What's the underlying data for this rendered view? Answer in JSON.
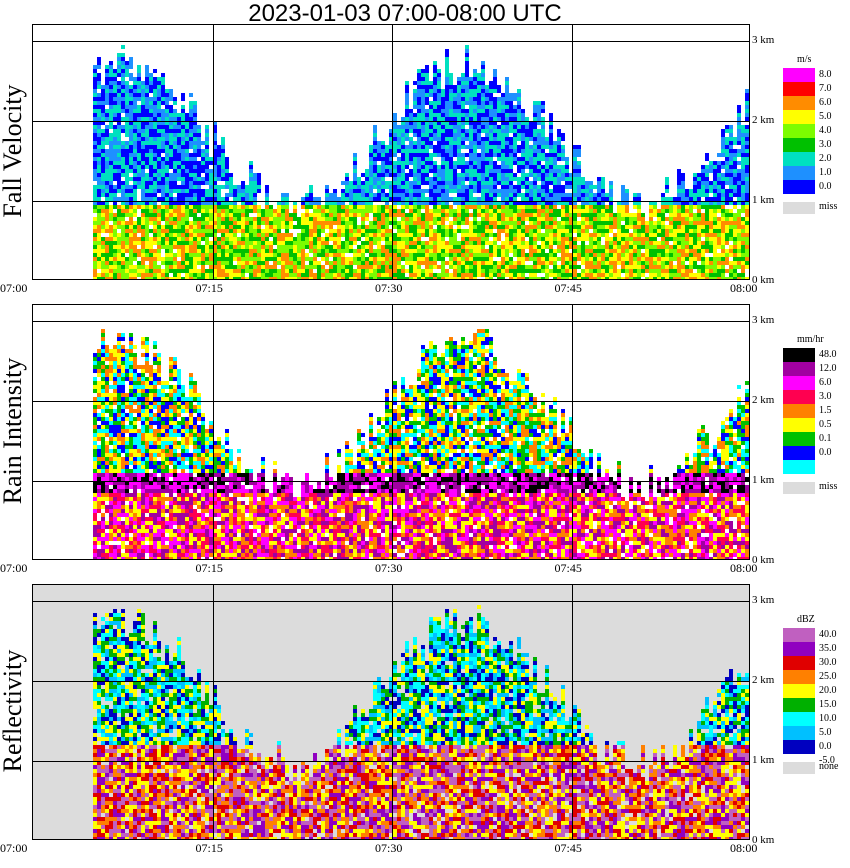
{
  "title": "2023-01-03  07:00-08:00 UTC",
  "time_ticks": [
    "07:00",
    "07:15",
    "07:30",
    "07:45",
    "08:00"
  ],
  "height_ticks": [
    "0 km",
    "1 km",
    "2 km",
    "3 km"
  ],
  "panels": [
    {
      "id": "fall",
      "label": "Fall Velocity",
      "unit": "m/s",
      "levels": [
        "8.0",
        "7.0",
        "6.0",
        "5.0",
        "4.0",
        "3.0",
        "2.0",
        "1.0",
        "0.0"
      ],
      "colors": [
        "#ff00ff",
        "#ff0000",
        "#ff8c00",
        "#ffff00",
        "#7cfc00",
        "#00c000",
        "#00e0c0",
        "#1e90ff",
        "#0000ff"
      ],
      "missing_label": "miss",
      "background": "#ffffff"
    },
    {
      "id": "rain",
      "label": "Rain Intensity",
      "unit": "mm/hr",
      "levels": [
        "48.0",
        "12.0",
        "6.0",
        "3.0",
        "1.5",
        "0.5",
        "0.1",
        "0.0"
      ],
      "colors": [
        "#000000",
        "#a000a0",
        "#ff00ff",
        "#ff0050",
        "#ff8000",
        "#ffff00",
        "#00c000",
        "#0000ff",
        "#00ffff"
      ],
      "missing_label": "miss",
      "background": "#ffffff"
    },
    {
      "id": "refl",
      "label": "Reflectivity",
      "unit": "dBZ",
      "levels": [
        "40.0",
        "35.0",
        "30.0",
        "25.0",
        "20.0",
        "15.0",
        "10.0",
        "5.0",
        "0.0",
        "-5.0"
      ],
      "colors": [
        "#c060c0",
        "#9000c0",
        "#e00000",
        "#ff8000",
        "#ffff00",
        "#00b000",
        "#00ffff",
        "#00c0ff",
        "#0000c0"
      ],
      "missing_label": "none",
      "background": "#dcdcdc"
    }
  ]
}
